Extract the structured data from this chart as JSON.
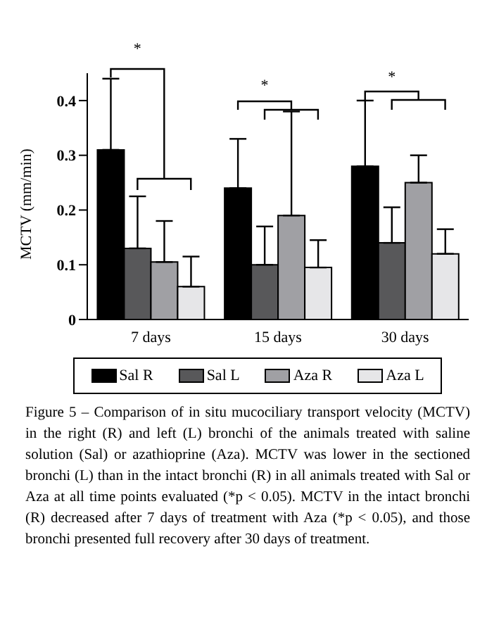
{
  "chart_data": {
    "type": "bar",
    "categories": [
      "7 days",
      "15 days",
      "30 days"
    ],
    "ylabel": "MCTV (mm/min)",
    "series": [
      {
        "name": "Sal R",
        "color": "#000000",
        "values": [
          0.31,
          0.24,
          0.28
        ],
        "errors": [
          [
            0.31,
            0.44
          ],
          [
            0.24,
            0.33
          ],
          [
            0.28,
            0.4
          ]
        ]
      },
      {
        "name": "Sal L",
        "color": "#58585a",
        "values": [
          0.13,
          0.1,
          0.14
        ],
        "errors": [
          [
            0.13,
            0.225
          ],
          [
            0.1,
            0.17
          ],
          [
            0.14,
            0.205
          ]
        ]
      },
      {
        "name": "Aza R",
        "color": "#a0a0a4",
        "values": [
          0.105,
          0.19,
          0.25
        ],
        "errors": [
          [
            0.105,
            0.18
          ],
          [
            0.19,
            0.38
          ],
          [
            0.25,
            0.3
          ]
        ]
      },
      {
        "name": "Aza L",
        "color": "#e6e6e8",
        "values": [
          0.06,
          0.095,
          0.12
        ],
        "errors": [
          [
            0.06,
            0.115
          ],
          [
            0.095,
            0.145
          ],
          [
            0.12,
            0.165
          ]
        ]
      }
    ],
    "ylim": [
      0,
      0.45
    ],
    "yticks": [
      {
        "value": 0,
        "label": "0"
      },
      0.1,
      0.2,
      0.3,
      0.4
    ],
    "grid": false,
    "legend": "bottom",
    "annotations": [
      "*",
      "*",
      "*",
      "Figure 5 – Comparison of in situ mucociliary transport velocity (MCTV) in the right (R) and left (L) bronchi of the animals treated with saline solution (Sal) or azathioprine (Aza). MCTV was lower in the sectioned bronchi (L) than in the intact bronchi (R) in all animals treated with Sal or Aza at all time points evaluated (*p < 0.05). MCTV in the intact bronchi (R) decreased after 7 days of treatment with Aza (*p < 0.05), and those bronchi presented full recovery after 30 days of treatment."
    ]
  }
}
